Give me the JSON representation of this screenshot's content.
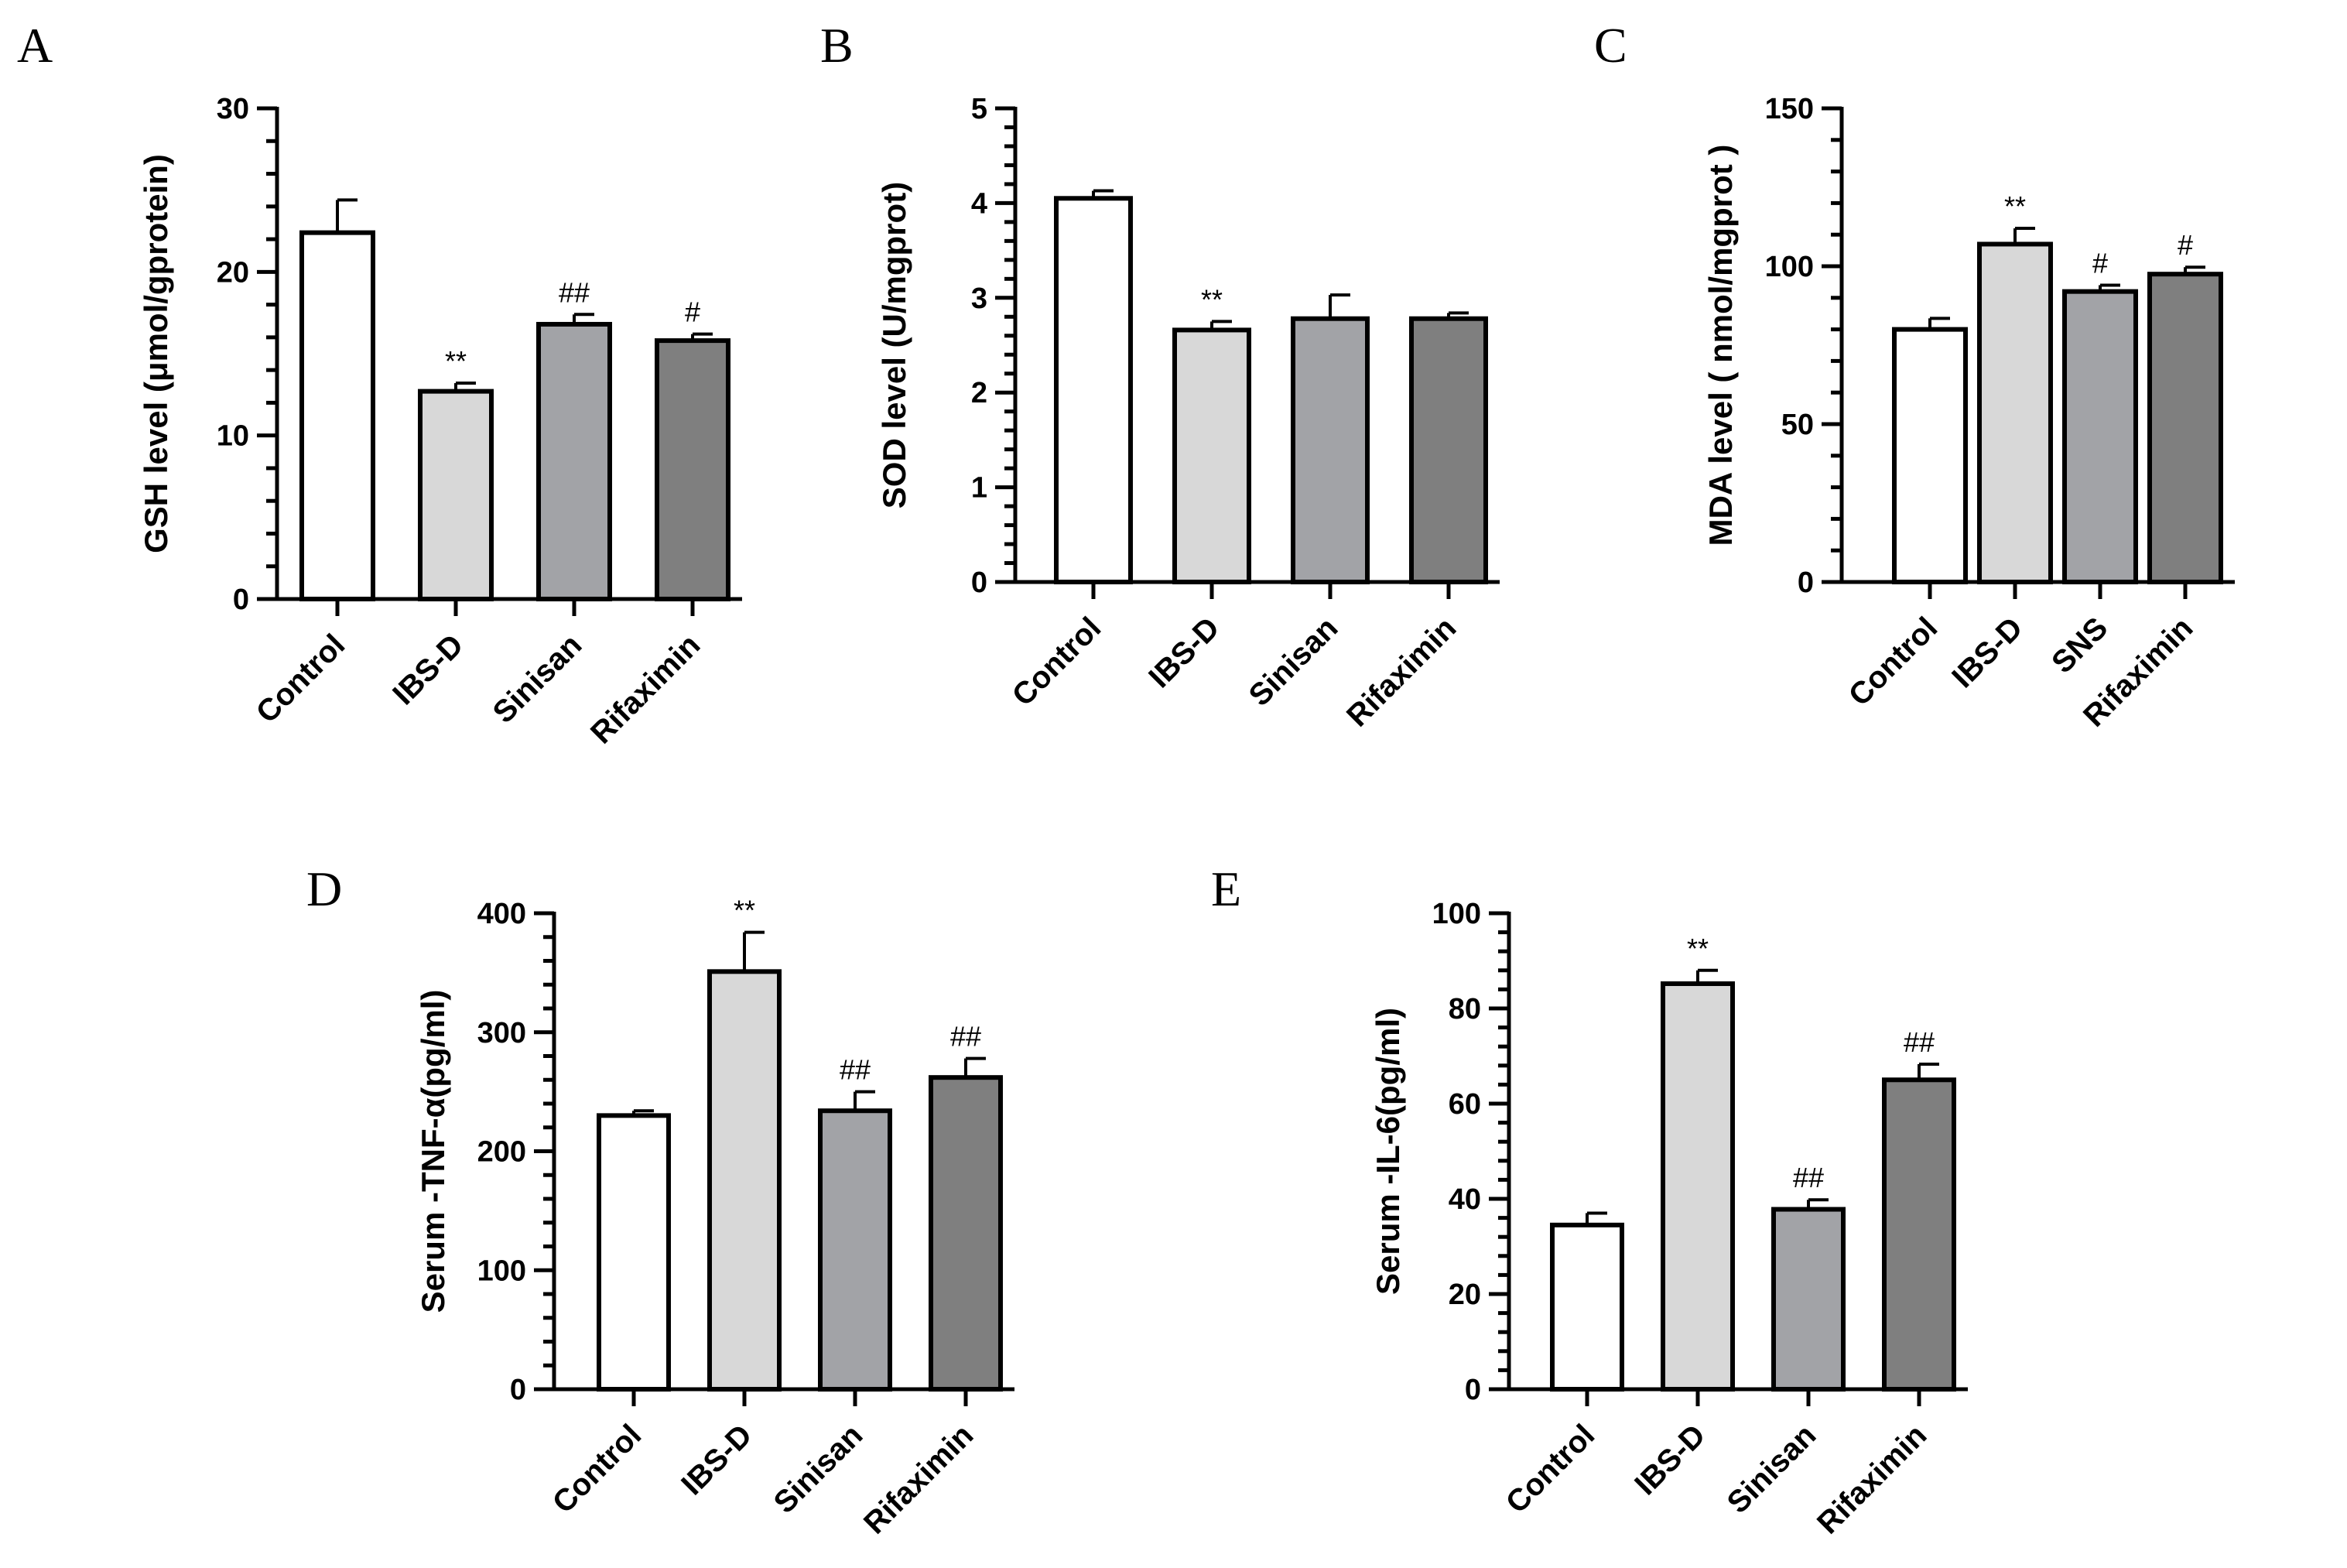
{
  "chart_data": [
    {
      "type": "bar",
      "panel": "A",
      "ylabel": "GSH level (μmol/gprotein)",
      "ylim": [
        0,
        30
      ],
      "yticks": [
        0,
        10,
        20,
        30
      ],
      "categories": [
        "Control",
        "IBS-D",
        "Sinisan",
        "Rifaximin"
      ],
      "values": [
        22.4,
        12.7,
        16.8,
        15.8
      ],
      "errors": [
        2.0,
        0.5,
        0.6,
        0.4
      ],
      "annotations": [
        "",
        "**",
        "##",
        "#"
      ],
      "bar_colors": [
        "#ffffff",
        "#d8d8d8",
        "#a2a3a7",
        "#7f7f7f"
      ]
    },
    {
      "type": "bar",
      "panel": "B",
      "ylabel": "SOD level (U/mgprot)",
      "ylim": [
        0,
        5
      ],
      "yticks": [
        0,
        1,
        2,
        3,
        4,
        5
      ],
      "categories": [
        "Control",
        "IBS-D",
        "Sinisan",
        "Rifaximin"
      ],
      "values": [
        4.05,
        2.66,
        2.78,
        2.78
      ],
      "errors": [
        0.08,
        0.09,
        0.25,
        0.06
      ],
      "annotations": [
        "",
        "**",
        "",
        ""
      ],
      "bar_colors": [
        "#ffffff",
        "#d8d8d8",
        "#a2a3a7",
        "#7f7f7f"
      ]
    },
    {
      "type": "bar",
      "panel": "C",
      "ylabel": "MDA level ( nmol/mgprot )",
      "ylim": [
        0,
        150
      ],
      "yticks": [
        0,
        50,
        100,
        150
      ],
      "categories": [
        "Control",
        "IBS-D",
        "SNS",
        "Rifaximin"
      ],
      "values": [
        80,
        107,
        92,
        97.5
      ],
      "errors": [
        3.5,
        5.0,
        2.0,
        2.2
      ],
      "annotations": [
        "",
        "**",
        "#",
        "#"
      ],
      "bar_colors": [
        "#ffffff",
        "#d8d8d8",
        "#a2a3a7",
        "#7f7f7f"
      ]
    },
    {
      "type": "bar",
      "panel": "D",
      "ylabel": "Serum -TNF-α(pg/ml)",
      "ylim": [
        0,
        400
      ],
      "yticks": [
        0,
        100,
        200,
        300,
        400
      ],
      "categories": [
        "Control",
        "IBS-D",
        "Sinisan",
        "Rifaximin"
      ],
      "values": [
        230,
        351,
        234,
        262
      ],
      "errors": [
        4,
        33,
        16,
        16
      ],
      "annotations": [
        "",
        "**",
        "##",
        "##"
      ],
      "bar_colors": [
        "#ffffff",
        "#d8d8d8",
        "#a2a3a7",
        "#7f7f7f"
      ]
    },
    {
      "type": "bar",
      "panel": "E",
      "ylabel": "Serum -IL-6(pg/ml)",
      "ylim": [
        0,
        100
      ],
      "yticks": [
        0,
        20,
        40,
        60,
        80,
        100
      ],
      "categories": [
        "Control",
        "IBS-D",
        "Sinisan",
        "Rifaximin"
      ],
      "values": [
        34.5,
        85.2,
        37.8,
        65
      ],
      "errors": [
        2.5,
        2.8,
        2.0,
        3.3
      ],
      "annotations": [
        "",
        "**",
        "##",
        "##"
      ],
      "bar_colors": [
        "#ffffff",
        "#d8d8d8",
        "#a2a3a7",
        "#7f7f7f"
      ]
    }
  ]
}
